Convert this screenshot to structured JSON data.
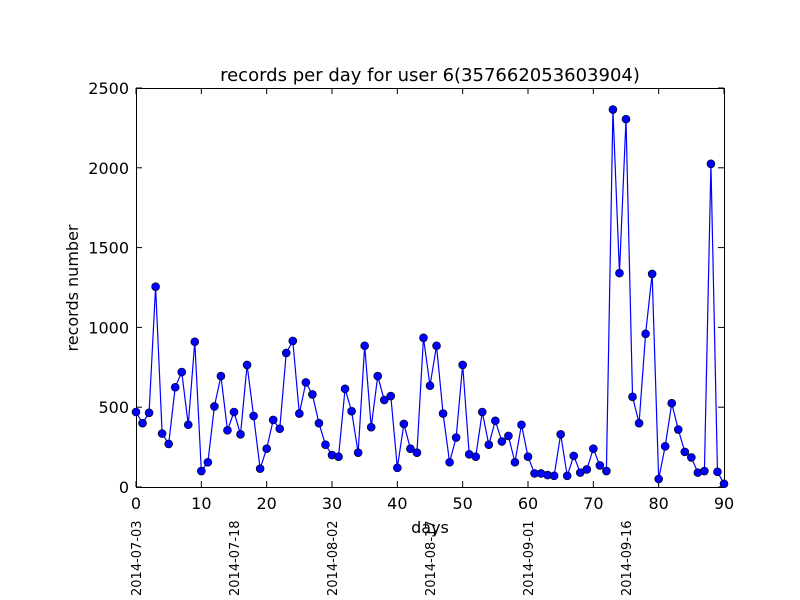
{
  "chart_data": {
    "type": "line",
    "title": "records per day for user 6(357662053603904)",
    "xlabel": "days",
    "ylabel": "records number",
    "xlim": [
      0,
      90
    ],
    "ylim": [
      0,
      2500
    ],
    "grid": false,
    "line_color": "#0000ff",
    "marker_color": "#0000ff",
    "x_ticks": [
      "0",
      "10",
      "20",
      "30",
      "40",
      "50",
      "60",
      "70",
      "80",
      "90"
    ],
    "y_ticks": [
      "0",
      "500",
      "1000",
      "1500",
      "2000",
      "2500"
    ],
    "date_labels": [
      {
        "x": 0,
        "label": "2014-07-03"
      },
      {
        "x": 15,
        "label": "2014-07-18"
      },
      {
        "x": 30,
        "label": "2014-08-02"
      },
      {
        "x": 45,
        "label": "2014-08-17"
      },
      {
        "x": 60,
        "label": "2014-09-01"
      },
      {
        "x": 75,
        "label": "2014-09-16"
      }
    ],
    "series": [
      {
        "values": [
          470,
          400,
          465,
          1255,
          335,
          270,
          625,
          720,
          390,
          910,
          100,
          155,
          505,
          695,
          355,
          470,
          330,
          765,
          445,
          115,
          240,
          420,
          365,
          840,
          915,
          460,
          655,
          580,
          400,
          265,
          200,
          190,
          615,
          475,
          215,
          885,
          375,
          695,
          545,
          570,
          120,
          395,
          240,
          215,
          935,
          635,
          885,
          460,
          155,
          310,
          765,
          205,
          190,
          470,
          265,
          415,
          285,
          320,
          155,
          390,
          190,
          85,
          85,
          75,
          70,
          330,
          70,
          195,
          90,
          110,
          240,
          135,
          100,
          2365,
          1340,
          2305,
          565,
          400,
          960,
          1335,
          50,
          255,
          525,
          360,
          220,
          185,
          90,
          100,
          2025,
          95,
          20
        ]
      }
    ]
  }
}
